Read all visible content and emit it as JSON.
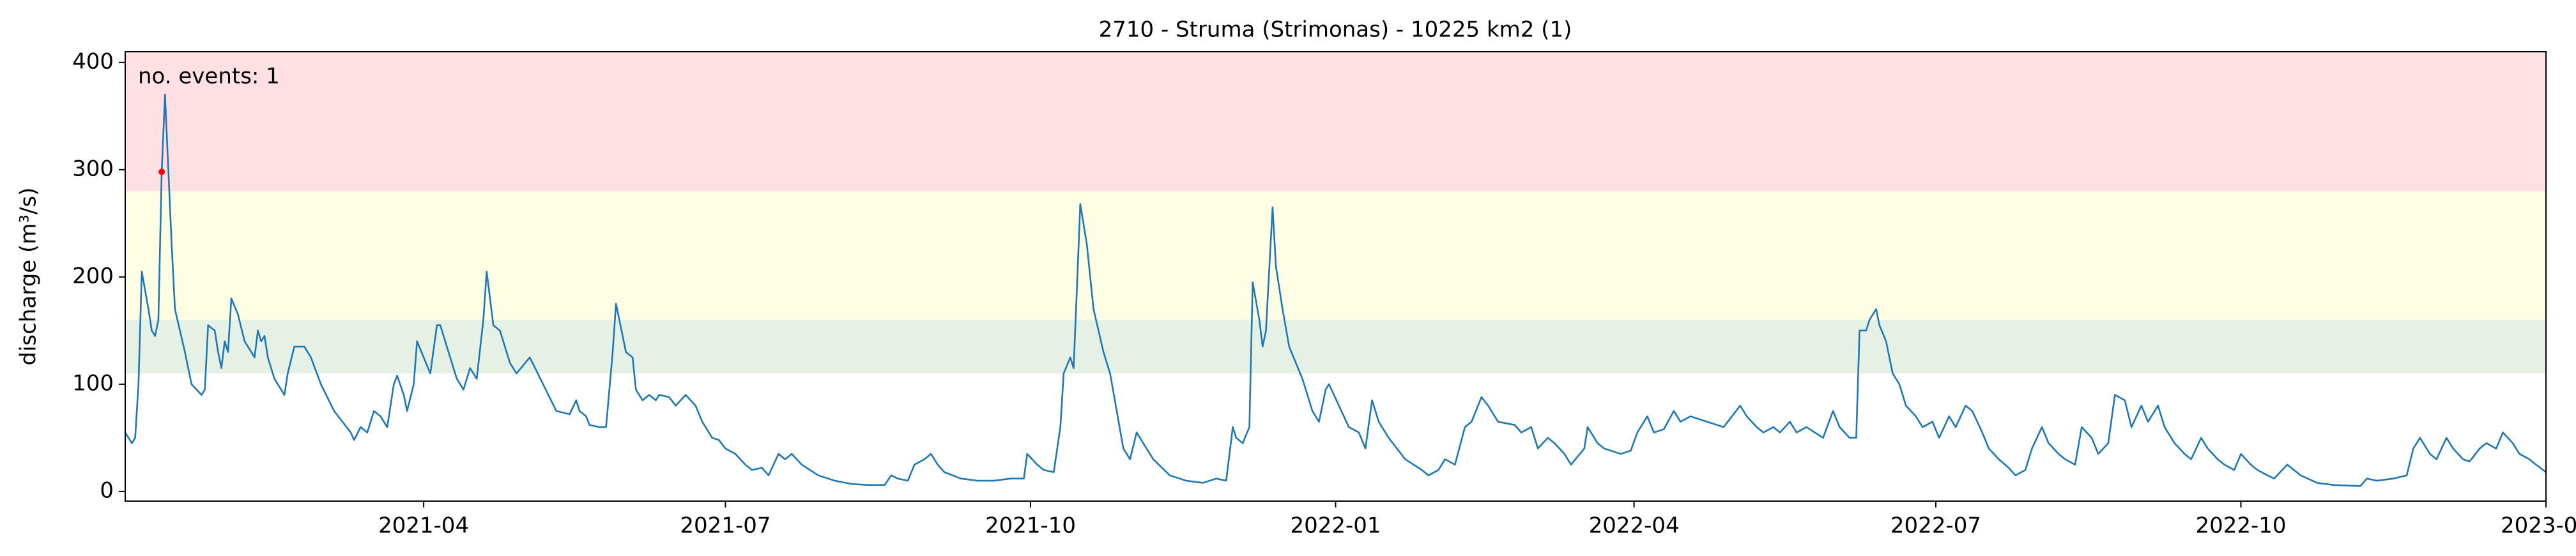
{
  "chart_data": {
    "type": "line",
    "title": "2710 - Struma (Strimonas) - 10225 km2 (1)",
    "y_label": "discharge (m³/s)",
    "annotation": "no. events: 1",
    "annotation_color": "#e00000",
    "xlim": [
      "2021-01-01",
      "2023-01-01"
    ],
    "ylim": [
      -9,
      410
    ],
    "yticks": [
      0,
      100,
      200,
      300,
      400
    ],
    "xticks": [
      {
        "value": "2021-04-01",
        "label": "2021-04"
      },
      {
        "value": "2021-07-01",
        "label": "2021-07"
      },
      {
        "value": "2021-10-01",
        "label": "2021-10"
      },
      {
        "value": "2022-01-01",
        "label": "2022-01"
      },
      {
        "value": "2022-04-01",
        "label": "2022-04"
      },
      {
        "value": "2022-07-01",
        "label": "2022-07"
      },
      {
        "value": "2022-10-01",
        "label": "2022-10"
      },
      {
        "value": "2023-01-01",
        "label": "2023-01"
      }
    ],
    "thresholds": [
      {
        "value": 110,
        "color": "#e5f1e5"
      },
      {
        "value": 160,
        "color": "#fefee5"
      },
      {
        "value": 280,
        "color": "#ffe1e4"
      }
    ],
    "events": {
      "x": [
        "2021-01-12"
      ],
      "values": [
        298
      ],
      "color": "#ff0000"
    },
    "x": [
      "2021-01-01",
      "2021-01-03",
      "2021-01-04",
      "2021-01-05",
      "2021-01-06",
      "2021-01-08",
      "2021-01-09",
      "2021-01-10",
      "2021-01-11",
      "2021-01-12",
      "2021-01-13",
      "2021-01-14",
      "2021-01-15",
      "2021-01-16",
      "2021-01-19",
      "2021-01-21",
      "2021-01-24",
      "2021-01-25",
      "2021-01-26",
      "2021-01-28",
      "2021-01-29",
      "2021-01-30",
      "2021-01-31",
      "2021-02-01",
      "2021-02-02",
      "2021-02-04",
      "2021-02-06",
      "2021-02-09",
      "2021-02-10",
      "2021-02-11",
      "2021-02-12",
      "2021-02-13",
      "2021-02-15",
      "2021-02-18",
      "2021-02-19",
      "2021-02-21",
      "2021-02-24",
      "2021-02-26",
      "2021-03-01",
      "2021-03-05",
      "2021-03-10",
      "2021-03-11",
      "2021-03-13",
      "2021-03-15",
      "2021-03-17",
      "2021-03-19",
      "2021-03-21",
      "2021-03-23",
      "2021-03-24",
      "2021-03-26",
      "2021-03-27",
      "2021-03-29",
      "2021-03-30",
      "2021-04-01",
      "2021-04-03",
      "2021-04-05",
      "2021-04-06",
      "2021-04-09",
      "2021-04-11",
      "2021-04-13",
      "2021-04-15",
      "2021-04-17",
      "2021-04-19",
      "2021-04-20",
      "2021-04-22",
      "2021-04-24",
      "2021-04-27",
      "2021-04-29",
      "2021-05-03",
      "2021-05-07",
      "2021-05-11",
      "2021-05-15",
      "2021-05-17",
      "2021-05-18",
      "2021-05-20",
      "2021-05-21",
      "2021-05-24",
      "2021-05-26",
      "2021-05-28",
      "2021-05-29",
      "2021-05-31",
      "2021-06-01",
      "2021-06-03",
      "2021-06-04",
      "2021-06-06",
      "2021-06-08",
      "2021-06-10",
      "2021-06-11",
      "2021-06-14",
      "2021-06-16",
      "2021-06-19",
      "2021-06-22",
      "2021-06-24",
      "2021-06-27",
      "2021-06-29",
      "2021-07-01",
      "2021-07-04",
      "2021-07-07",
      "2021-07-09",
      "2021-07-12",
      "2021-07-14",
      "2021-07-17",
      "2021-07-19",
      "2021-07-21",
      "2021-07-24",
      "2021-07-29",
      "2021-08-03",
      "2021-08-08",
      "2021-08-13",
      "2021-08-18",
      "2021-08-20",
      "2021-08-22",
      "2021-08-25",
      "2021-08-27",
      "2021-08-30",
      "2021-09-01",
      "2021-09-03",
      "2021-09-05",
      "2021-09-10",
      "2021-09-15",
      "2021-09-20",
      "2021-09-25",
      "2021-09-29",
      "2021-09-30",
      "2021-10-03",
      "2021-10-05",
      "2021-10-08",
      "2021-10-10",
      "2021-10-11",
      "2021-10-13",
      "2021-10-14",
      "2021-10-15",
      "2021-10-16",
      "2021-10-18",
      "2021-10-20",
      "2021-10-23",
      "2021-10-25",
      "2021-10-27",
      "2021-10-29",
      "2021-10-31",
      "2021-11-02",
      "2021-11-05",
      "2021-11-07",
      "2021-11-12",
      "2021-11-17",
      "2021-11-22",
      "2021-11-26",
      "2021-11-29",
      "2021-12-01",
      "2021-12-02",
      "2021-12-04",
      "2021-12-06",
      "2021-12-07",
      "2021-12-09",
      "2021-12-10",
      "2021-12-11",
      "2021-12-13",
      "2021-12-14",
      "2021-12-16",
      "2021-12-18",
      "2021-12-22",
      "2021-12-25",
      "2021-12-27",
      "2021-12-29",
      "2021-12-30",
      "2022-01-02",
      "2022-01-05",
      "2022-01-08",
      "2022-01-10",
      "2022-01-12",
      "2022-01-14",
      "2022-01-17",
      "2022-01-22",
      "2022-01-27",
      "2022-01-29",
      "2022-02-01",
      "2022-02-03",
      "2022-02-06",
      "2022-02-09",
      "2022-02-11",
      "2022-02-14",
      "2022-02-16",
      "2022-02-19",
      "2022-02-24",
      "2022-02-26",
      "2022-03-01",
      "2022-03-03",
      "2022-03-06",
      "2022-03-08",
      "2022-03-11",
      "2022-03-13",
      "2022-03-17",
      "2022-03-18",
      "2022-03-21",
      "2022-03-23",
      "2022-03-28",
      "2022-03-31",
      "2022-04-02",
      "2022-04-05",
      "2022-04-07",
      "2022-04-10",
      "2022-04-13",
      "2022-04-15",
      "2022-04-18",
      "2022-04-23",
      "2022-04-28",
      "2022-05-03",
      "2022-05-05",
      "2022-05-08",
      "2022-05-10",
      "2022-05-13",
      "2022-05-15",
      "2022-05-18",
      "2022-05-20",
      "2022-05-23",
      "2022-05-28",
      "2022-05-31",
      "2022-06-02",
      "2022-06-05",
      "2022-06-07",
      "2022-06-08",
      "2022-06-10",
      "2022-06-11",
      "2022-06-13",
      "2022-06-14",
      "2022-06-16",
      "2022-06-18",
      "2022-06-20",
      "2022-06-22",
      "2022-06-25",
      "2022-06-27",
      "2022-06-30",
      "2022-07-02",
      "2022-07-05",
      "2022-07-07",
      "2022-07-10",
      "2022-07-12",
      "2022-07-15",
      "2022-07-17",
      "2022-07-20",
      "2022-07-23",
      "2022-07-25",
      "2022-07-28",
      "2022-07-30",
      "2022-08-02",
      "2022-08-04",
      "2022-08-07",
      "2022-08-09",
      "2022-08-12",
      "2022-08-14",
      "2022-08-17",
      "2022-08-19",
      "2022-08-22",
      "2022-08-24",
      "2022-08-27",
      "2022-08-29",
      "2022-09-01",
      "2022-09-03",
      "2022-09-06",
      "2022-09-08",
      "2022-09-11",
      "2022-09-14",
      "2022-09-16",
      "2022-09-19",
      "2022-09-21",
      "2022-09-24",
      "2022-09-26",
      "2022-09-29",
      "2022-10-01",
      "2022-10-04",
      "2022-10-06",
      "2022-10-09",
      "2022-10-11",
      "2022-10-15",
      "2022-10-19",
      "2022-10-24",
      "2022-10-29",
      "2022-11-06",
      "2022-11-08",
      "2022-11-11",
      "2022-11-16",
      "2022-11-20",
      "2022-11-22",
      "2022-11-24",
      "2022-11-27",
      "2022-11-29",
      "2022-12-02",
      "2022-12-04",
      "2022-12-07",
      "2022-12-09",
      "2022-12-12",
      "2022-12-14",
      "2022-12-17",
      "2022-12-19",
      "2022-12-22",
      "2022-12-24",
      "2022-12-27",
      "2022-12-29",
      "2023-01-01"
    ],
    "series": [
      {
        "name": "discharge",
        "color": "#1f77b4",
        "values": [
          55,
          45,
          50,
          100,
          205,
          170,
          150,
          145,
          160,
          298,
          370,
          300,
          230,
          170,
          130,
          100,
          90,
          95,
          155,
          150,
          130,
          115,
          140,
          130,
          180,
          165,
          140,
          125,
          150,
          140,
          145,
          125,
          105,
          90,
          110,
          135,
          135,
          125,
          100,
          75,
          55,
          48,
          60,
          55,
          75,
          70,
          60,
          100,
          108,
          90,
          75,
          100,
          140,
          125,
          110,
          155,
          155,
          125,
          105,
          95,
          115,
          105,
          160,
          205,
          155,
          150,
          120,
          110,
          125,
          100,
          75,
          72,
          85,
          75,
          70,
          62,
          60,
          60,
          130,
          175,
          145,
          130,
          125,
          95,
          85,
          90,
          85,
          90,
          88,
          80,
          90,
          80,
          65,
          50,
          48,
          40,
          35,
          25,
          20,
          22,
          15,
          35,
          30,
          35,
          25,
          15,
          10,
          7,
          6,
          6,
          15,
          12,
          10,
          25,
          30,
          35,
          25,
          18,
          12,
          10,
          10,
          12,
          12,
          35,
          25,
          20,
          18,
          60,
          110,
          125,
          115,
          190,
          268,
          230,
          170,
          130,
          110,
          75,
          40,
          30,
          55,
          40,
          30,
          15,
          10,
          8,
          12,
          10,
          60,
          50,
          45,
          60,
          195,
          160,
          135,
          150,
          265,
          210,
          170,
          135,
          105,
          75,
          65,
          95,
          100,
          80,
          60,
          55,
          40,
          85,
          65,
          50,
          30,
          20,
          15,
          20,
          30,
          25,
          60,
          65,
          88,
          80,
          65,
          62,
          55,
          60,
          40,
          50,
          45,
          35,
          25,
          40,
          60,
          45,
          40,
          35,
          38,
          55,
          70,
          55,
          58,
          75,
          65,
          70,
          65,
          60,
          80,
          70,
          60,
          55,
          60,
          55,
          65,
          55,
          60,
          50,
          75,
          60,
          50,
          50,
          150,
          150,
          160,
          170,
          155,
          140,
          110,
          100,
          80,
          70,
          60,
          65,
          50,
          70,
          60,
          80,
          75,
          55,
          40,
          30,
          22,
          15,
          20,
          40,
          60,
          45,
          35,
          30,
          25,
          60,
          50,
          35,
          45,
          90,
          85,
          60,
          80,
          65,
          80,
          60,
          45,
          35,
          30,
          50,
          40,
          30,
          25,
          20,
          35,
          25,
          20,
          15,
          12,
          25,
          15,
          8,
          6,
          5,
          12,
          10,
          12,
          15,
          40,
          50,
          35,
          30,
          50,
          40,
          30,
          28,
          40,
          45,
          40,
          55,
          45,
          35,
          30,
          25,
          18
        ]
      }
    ]
  }
}
